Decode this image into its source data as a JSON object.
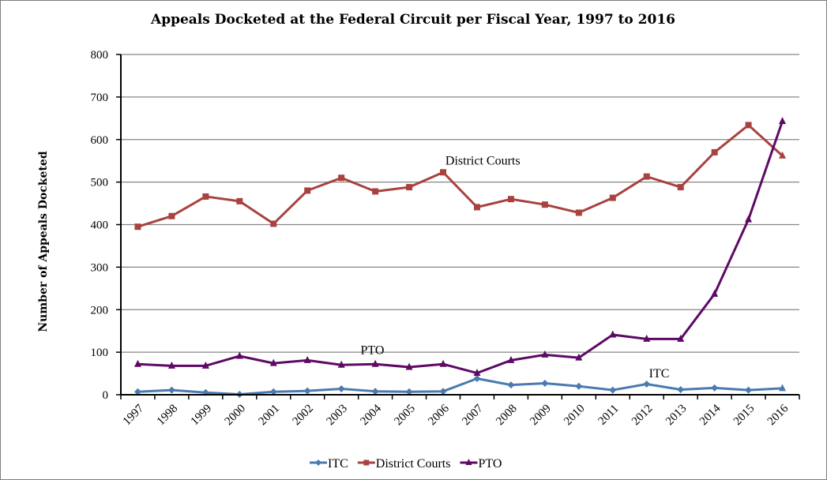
{
  "chart_data": {
    "type": "line",
    "title": "Appeals Docketed at the Federal Circuit per Fiscal Year, 1997 to 2016",
    "xlabel": "",
    "ylabel": "Number of Appeals Docketed",
    "ylim": [
      0,
      800
    ],
    "yticks": [
      0,
      100,
      200,
      300,
      400,
      500,
      600,
      700,
      800
    ],
    "grid": true,
    "legend_position": "bottom",
    "categories": [
      "1997",
      "1998",
      "1999",
      "2000",
      "2001",
      "2002",
      "2003",
      "2004",
      "2005",
      "2006",
      "2007",
      "2008",
      "2009",
      "2010",
      "2011",
      "2012",
      "2013",
      "2014",
      "2015",
      "2016"
    ],
    "series": [
      {
        "name": "ITC",
        "color": "#4a7ab0",
        "marker": "diamond",
        "values": [
          7,
          11,
          5,
          1,
          7,
          9,
          14,
          8,
          7,
          8,
          38,
          23,
          27,
          20,
          11,
          25,
          12,
          16,
          11,
          15
        ]
      },
      {
        "name": "District Courts",
        "color": "#a8423f",
        "marker": "square",
        "values": [
          395,
          420,
          466,
          455,
          402,
          480,
          510,
          478,
          488,
          523,
          441,
          460,
          447,
          428,
          463,
          513,
          488,
          570,
          634,
          562
        ]
      },
      {
        "name": "PTO",
        "color": "#5e0a65",
        "marker": "triangle",
        "values": [
          72,
          68,
          68,
          91,
          74,
          81,
          70,
          72,
          65,
          72,
          51,
          81,
          94,
          87,
          141,
          131,
          131,
          237,
          412,
          643
        ]
      }
    ],
    "annotations": [
      {
        "text": "District Courts",
        "near_series": "District Courts",
        "x": "2006.3",
        "y": 550
      },
      {
        "text": "PTO",
        "near_series": "PTO",
        "x": "2003.8",
        "y": 105
      },
      {
        "text": "ITC",
        "near_series": "ITC",
        "x": "2012.3",
        "y": 50
      }
    ]
  }
}
